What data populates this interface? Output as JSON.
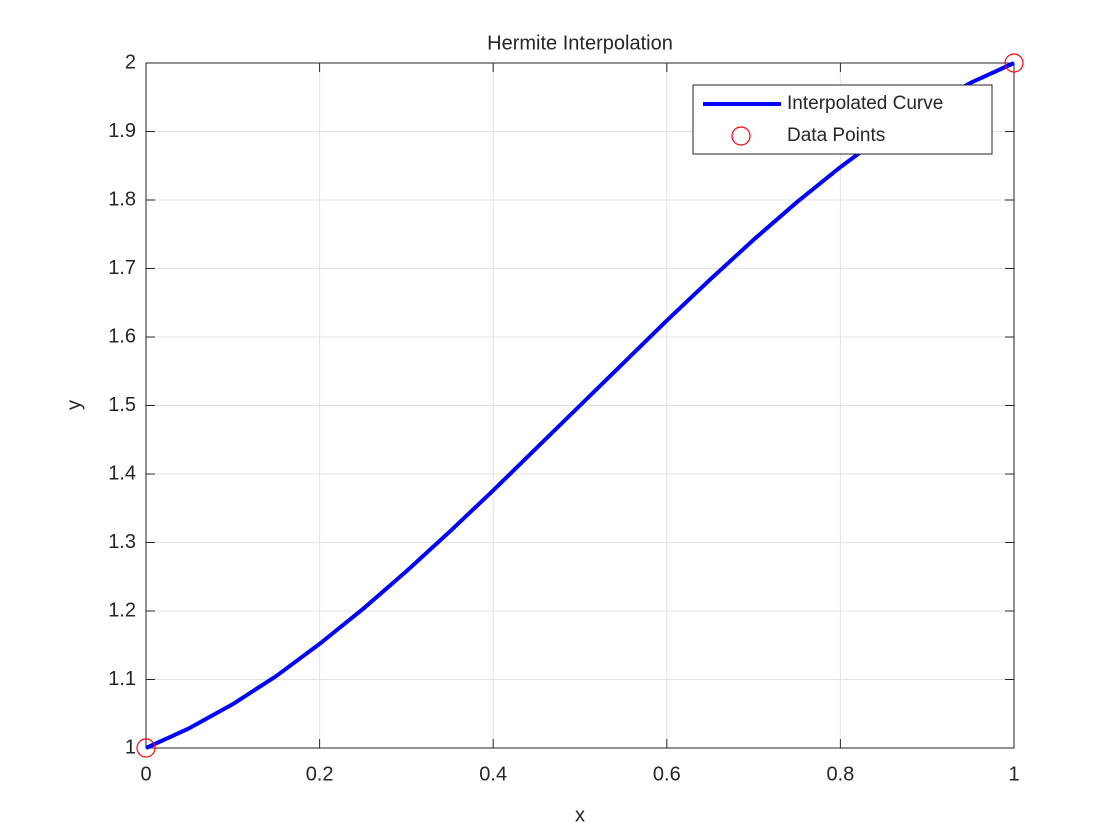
{
  "chart_data": {
    "type": "line",
    "title": "Hermite Interpolation",
    "x_label": "x",
    "y_label": "y",
    "series": [
      {
        "name": "Interpolated Curve",
        "color": "#0000ff",
        "mode": "line",
        "x": [
          0,
          0.05,
          0.1,
          0.15,
          0.2,
          0.25,
          0.3,
          0.35,
          0.4,
          0.45,
          0.5,
          0.55,
          0.6,
          0.65,
          0.7,
          0.75,
          0.8,
          0.85,
          0.9,
          0.95,
          1
        ],
        "values": [
          1,
          1.029,
          1.064,
          1.105,
          1.152,
          1.203,
          1.258,
          1.316,
          1.376,
          1.438,
          1.5,
          1.562,
          1.624,
          1.684,
          1.742,
          1.797,
          1.848,
          1.895,
          1.936,
          1.971,
          2
        ]
      },
      {
        "name": "Data Points",
        "color": "#ff0000",
        "mode": "markers",
        "x": [
          0,
          1
        ],
        "values": [
          1,
          2
        ]
      }
    ],
    "xlim": [
      0,
      1
    ],
    "xticks": [
      0,
      0.2,
      0.4,
      0.6,
      0.8,
      1
    ],
    "ylim": [
      1,
      2
    ],
    "yticks": [
      1,
      1.1,
      1.2,
      1.3,
      1.4,
      1.5,
      1.6,
      1.7,
      1.8,
      1.9,
      2
    ],
    "grid": true,
    "legend_position": "northeast"
  }
}
